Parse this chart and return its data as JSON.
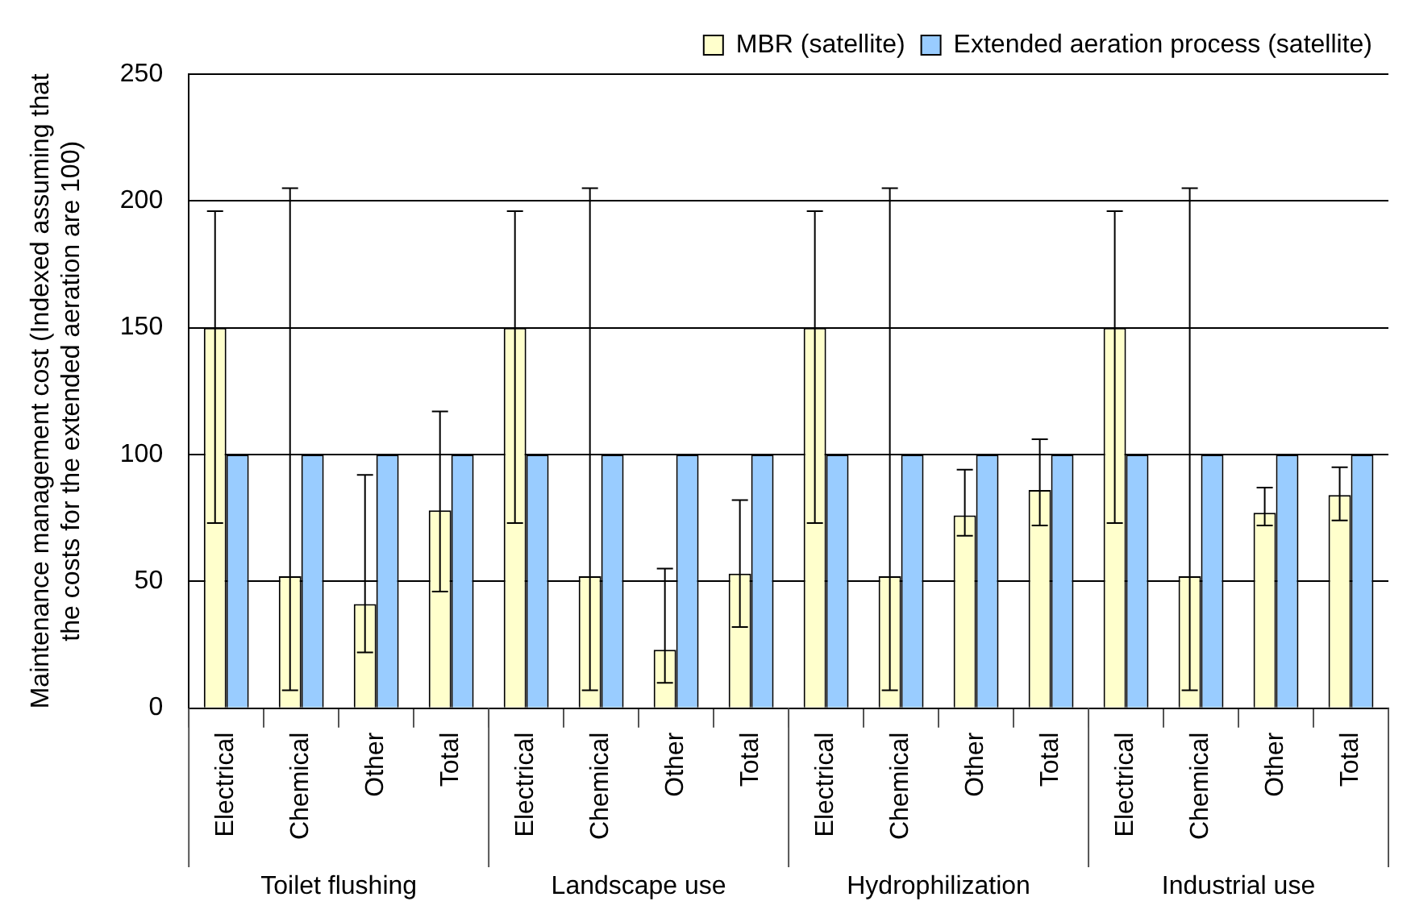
{
  "chart_data": {
    "type": "bar",
    "ylabel": "Maintenance management cost (Indexed assuming that\nthe costs for the extended aeration are 100)",
    "categories": [
      "Electrical",
      "Chemical",
      "Other",
      "Total",
      "Electrical",
      "Chemical",
      "Other",
      "Total",
      "Electrical",
      "Chemical",
      "Other",
      "Total",
      "Electrical",
      "Chemical",
      "Other",
      "Total"
    ],
    "series": [
      {
        "name": "MBR (satellite)",
        "color": "#ffffcc",
        "values": [
          150,
          52,
          41,
          78,
          150,
          52,
          23,
          53,
          150,
          52,
          76,
          86,
          150,
          52,
          77,
          84
        ],
        "errors": [
          [
            73,
            196
          ],
          [
            7,
            205
          ],
          [
            22,
            92
          ],
          [
            46,
            117
          ],
          [
            73,
            196
          ],
          [
            7,
            205
          ],
          [
            10,
            55
          ],
          [
            32,
            82
          ],
          [
            73,
            196
          ],
          [
            7,
            205
          ],
          [
            68,
            94
          ],
          [
            72,
            106
          ],
          [
            73,
            196
          ],
          [
            7,
            205
          ],
          [
            72,
            87
          ],
          [
            74,
            95
          ]
        ]
      },
      {
        "name": "Extended aeration process (satellite)",
        "color": "#99ccff",
        "values": [
          100,
          100,
          100,
          100,
          100,
          100,
          100,
          100,
          100,
          100,
          100,
          100,
          100,
          100,
          100,
          100
        ]
      }
    ],
    "annotations": [
      "Toilet flushing",
      "Landscape use",
      "Hydrophilization",
      "Industrial use"
    ],
    "ylim": [
      0,
      250
    ],
    "yticks": [
      0,
      50,
      100,
      150,
      200,
      250
    ],
    "grid": "y",
    "legend": "top right"
  }
}
